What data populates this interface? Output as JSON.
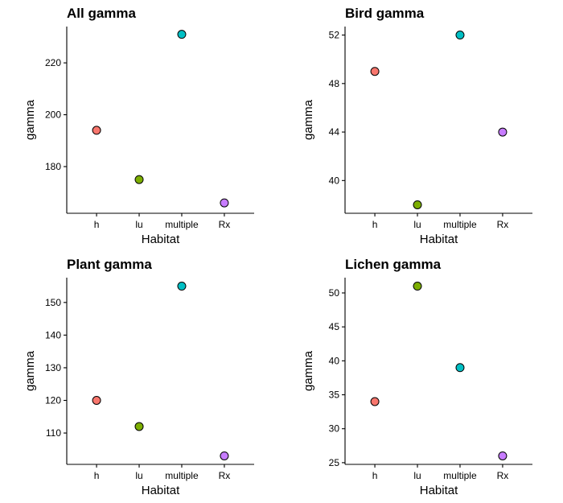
{
  "chart_data": [
    {
      "type": "scatter",
      "title": "All gamma",
      "xlabel": "Habitat",
      "ylabel": "gamma",
      "categories": [
        "h",
        "lu",
        "multiple",
        "Rx"
      ],
      "values": [
        194,
        175,
        231,
        166
      ],
      "ylim": [
        162,
        234
      ],
      "yticks": [
        180,
        200,
        220
      ],
      "grid": false,
      "legend": "none"
    },
    {
      "type": "scatter",
      "title": "Bird gamma",
      "xlabel": "Habitat",
      "ylabel": "gamma",
      "categories": [
        "h",
        "lu",
        "multiple",
        "Rx"
      ],
      "values": [
        49,
        38,
        52,
        44
      ],
      "ylim": [
        37.3,
        52.7
      ],
      "yticks": [
        40,
        44,
        48,
        52
      ],
      "grid": false,
      "legend": "none"
    },
    {
      "type": "scatter",
      "title": "Plant gamma",
      "xlabel": "Habitat",
      "ylabel": "gamma",
      "categories": [
        "h",
        "lu",
        "multiple",
        "Rx"
      ],
      "values": [
        120,
        112,
        155,
        103
      ],
      "ylim": [
        100.4,
        157.6
      ],
      "yticks": [
        110,
        120,
        130,
        140,
        150
      ],
      "grid": false,
      "legend": "none"
    },
    {
      "type": "scatter",
      "title": "Lichen gamma",
      "xlabel": "Habitat",
      "ylabel": "gamma",
      "categories": [
        "h",
        "lu",
        "multiple",
        "Rx"
      ],
      "values": [
        34,
        51,
        39,
        26
      ],
      "ylim": [
        24.75,
        52.25
      ],
      "yticks": [
        25,
        30,
        35,
        40,
        45,
        50
      ],
      "grid": false,
      "legend": "none"
    }
  ],
  "colors": {
    "h": "#F8766D",
    "lu": "#7CAE00",
    "multiple": "#00BFC4",
    "Rx": "#C77CFF",
    "axis": "#000000"
  }
}
